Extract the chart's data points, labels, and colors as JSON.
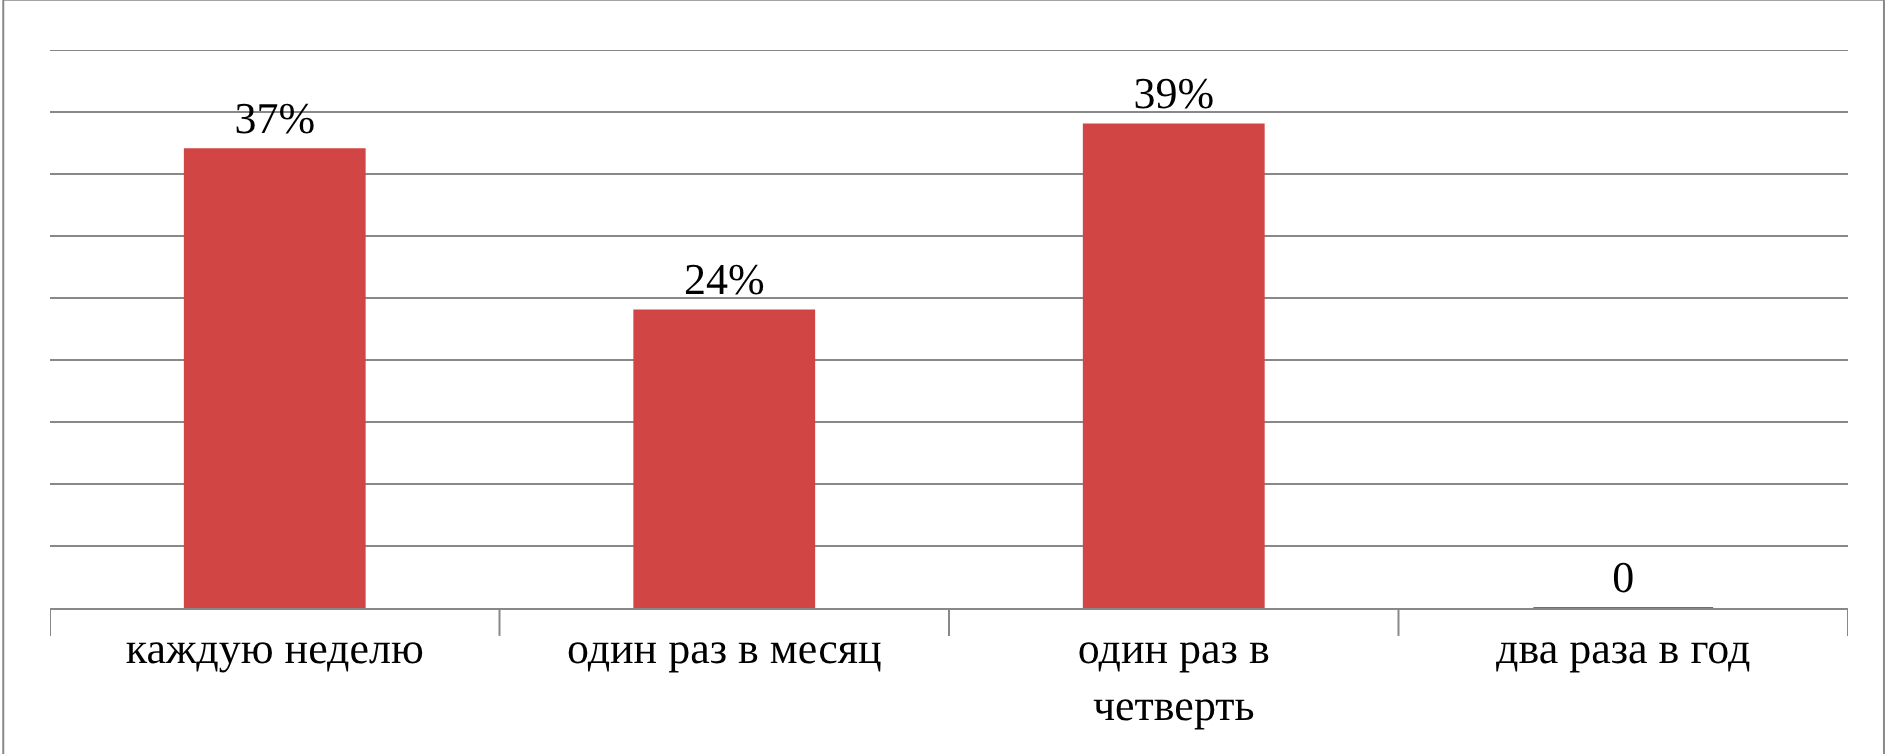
{
  "chart_data": {
    "type": "bar",
    "categories": [
      "каждую неделю",
      "один раз в месяц",
      "один раз в четверть",
      "два раза в год"
    ],
    "values": [
      37,
      24,
      39,
      0
    ],
    "value_labels": [
      "37%",
      "24%",
      "39%",
      "0"
    ],
    "color": "#d24545",
    "ylim": [
      0,
      45
    ],
    "yticks": [
      {
        "value": 0,
        "label": null
      },
      {
        "value": 5,
        "label": null
      },
      {
        "value": 10,
        "label": null
      },
      {
        "value": 15,
        "label": null
      },
      {
        "value": 20,
        "label": null
      },
      {
        "value": 25,
        "label": null
      },
      {
        "value": 30,
        "label": null
      },
      {
        "value": 35,
        "label": null
      },
      {
        "value": 40,
        "label": null
      },
      {
        "value": 45,
        "label": null
      }
    ],
    "grid": "y",
    "legend": false
  }
}
